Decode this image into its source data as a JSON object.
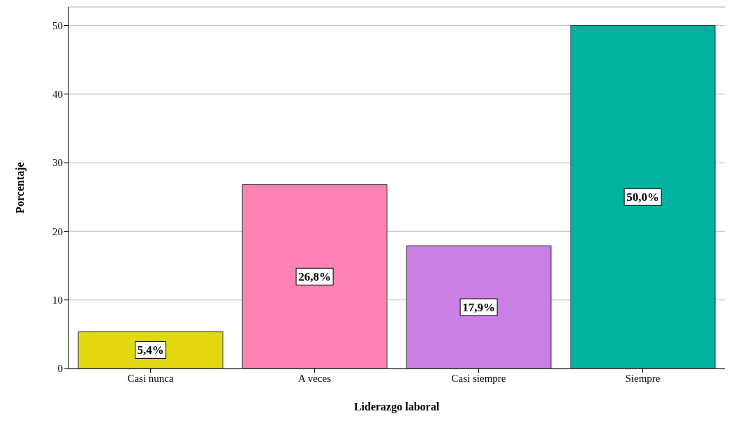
{
  "chart_data": {
    "type": "bar",
    "xlabel": "Liderazgo laboral",
    "ylabel": "Porcentaje",
    "categories": [
      "Casi nunca",
      "A veces",
      "Casi siempre",
      "Siempre"
    ],
    "values": [
      5.4,
      26.8,
      17.9,
      50.0
    ],
    "colors": [
      "#e3d80f",
      "#ff82b4",
      "#c97fe3",
      "#00b2a0"
    ],
    "value_labels": [
      "5,4%",
      "26,8%",
      "17,9%",
      "50,0%"
    ],
    "ylim": [
      0,
      52.7
    ],
    "yticks": [
      0,
      10,
      20,
      30,
      40,
      50
    ],
    "grid": "y",
    "legend": false
  }
}
